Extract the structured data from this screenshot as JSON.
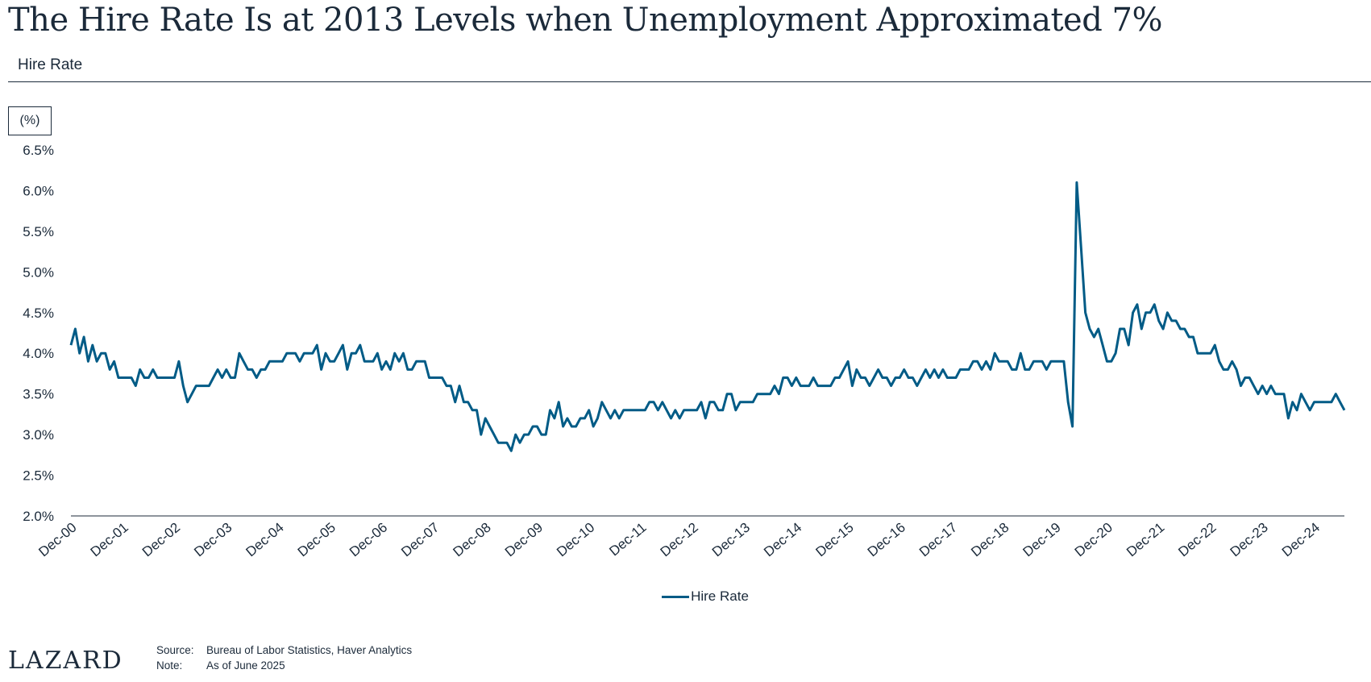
{
  "header": {
    "title": "The Hire Rate Is at 2013 Levels when Unemployment Approximated 7%",
    "subtitle": "Hire Rate"
  },
  "chart_data": {
    "type": "line",
    "unit_label": "(%)",
    "y_ticks": [
      "2.0%",
      "2.5%",
      "3.0%",
      "3.5%",
      "4.0%",
      "4.5%",
      "5.0%",
      "5.5%",
      "6.0%",
      "6.5%"
    ],
    "ylim": [
      2.0,
      6.5
    ],
    "x_ticks": [
      "Dec-00",
      "Dec-01",
      "Dec-02",
      "Dec-03",
      "Dec-04",
      "Dec-05",
      "Dec-06",
      "Dec-07",
      "Dec-08",
      "Dec-09",
      "Dec-10",
      "Dec-11",
      "Dec-12",
      "Dec-13",
      "Dec-14",
      "Dec-15",
      "Dec-16",
      "Dec-17",
      "Dec-18",
      "Dec-19",
      "Dec-20",
      "Dec-21",
      "Dec-22",
      "Dec-23",
      "Dec-24"
    ],
    "x_range": [
      "Dec-00",
      "Jun-25"
    ],
    "legend_position": "bottom-center",
    "grid": false,
    "series": [
      {
        "name": "Hire Rate",
        "color": "#005b86",
        "start": "Dec-00",
        "frequency": "monthly",
        "values": [
          4.1,
          4.3,
          4.0,
          4.2,
          3.9,
          4.1,
          3.9,
          4.0,
          4.0,
          3.8,
          3.9,
          3.7,
          3.7,
          3.7,
          3.7,
          3.6,
          3.8,
          3.7,
          3.7,
          3.8,
          3.7,
          3.7,
          3.7,
          3.7,
          3.7,
          3.9,
          3.6,
          3.4,
          3.5,
          3.6,
          3.6,
          3.6,
          3.6,
          3.7,
          3.8,
          3.7,
          3.8,
          3.7,
          3.7,
          4.0,
          3.9,
          3.8,
          3.8,
          3.7,
          3.8,
          3.8,
          3.9,
          3.9,
          3.9,
          3.9,
          4.0,
          4.0,
          4.0,
          3.9,
          4.0,
          4.0,
          4.0,
          4.1,
          3.8,
          4.0,
          3.9,
          3.9,
          4.0,
          4.1,
          3.8,
          4.0,
          4.0,
          4.1,
          3.9,
          3.9,
          3.9,
          4.0,
          3.8,
          3.9,
          3.8,
          4.0,
          3.9,
          4.0,
          3.8,
          3.8,
          3.9,
          3.9,
          3.9,
          3.7,
          3.7,
          3.7,
          3.7,
          3.6,
          3.6,
          3.4,
          3.6,
          3.4,
          3.4,
          3.3,
          3.3,
          3.0,
          3.2,
          3.1,
          3.0,
          2.9,
          2.9,
          2.9,
          2.8,
          3.0,
          2.9,
          3.0,
          3.0,
          3.1,
          3.1,
          3.0,
          3.0,
          3.3,
          3.2,
          3.4,
          3.1,
          3.2,
          3.1,
          3.1,
          3.2,
          3.2,
          3.3,
          3.1,
          3.2,
          3.4,
          3.3,
          3.2,
          3.3,
          3.2,
          3.3,
          3.3,
          3.3,
          3.3,
          3.3,
          3.3,
          3.4,
          3.4,
          3.3,
          3.4,
          3.3,
          3.2,
          3.3,
          3.2,
          3.3,
          3.3,
          3.3,
          3.3,
          3.4,
          3.2,
          3.4,
          3.4,
          3.3,
          3.3,
          3.5,
          3.5,
          3.3,
          3.4,
          3.4,
          3.4,
          3.4,
          3.5,
          3.5,
          3.5,
          3.5,
          3.6,
          3.5,
          3.7,
          3.7,
          3.6,
          3.7,
          3.6,
          3.6,
          3.6,
          3.7,
          3.6,
          3.6,
          3.6,
          3.6,
          3.7,
          3.7,
          3.8,
          3.9,
          3.6,
          3.8,
          3.7,
          3.7,
          3.6,
          3.7,
          3.8,
          3.7,
          3.7,
          3.6,
          3.7,
          3.7,
          3.8,
          3.7,
          3.7,
          3.6,
          3.7,
          3.8,
          3.7,
          3.8,
          3.7,
          3.8,
          3.7,
          3.7,
          3.7,
          3.8,
          3.8,
          3.8,
          3.9,
          3.9,
          3.8,
          3.9,
          3.8,
          4.0,
          3.9,
          3.9,
          3.9,
          3.8,
          3.8,
          4.0,
          3.8,
          3.8,
          3.9,
          3.9,
          3.9,
          3.8,
          3.9,
          3.9,
          3.9,
          3.9,
          3.4,
          3.1,
          6.1,
          5.3,
          4.5,
          4.3,
          4.2,
          4.3,
          4.1,
          3.9,
          3.9,
          4.0,
          4.3,
          4.3,
          4.1,
          4.5,
          4.6,
          4.3,
          4.5,
          4.5,
          4.6,
          4.4,
          4.3,
          4.5,
          4.4,
          4.4,
          4.3,
          4.3,
          4.2,
          4.2,
          4.0,
          4.0,
          4.0,
          4.0,
          4.1,
          3.9,
          3.8,
          3.8,
          3.9,
          3.8,
          3.6,
          3.7,
          3.7,
          3.6,
          3.5,
          3.6,
          3.5,
          3.6,
          3.5,
          3.5,
          3.5,
          3.2,
          3.4,
          3.3,
          3.5,
          3.4,
          3.3,
          3.4,
          3.4,
          3.4,
          3.4,
          3.4,
          3.5,
          3.4,
          3.3
        ]
      }
    ]
  },
  "legend": {
    "label": "Hire Rate"
  },
  "footer": {
    "logo": "LAZARD",
    "source_label": "Source:",
    "source_text": "Bureau of Labor Statistics, Haver Analytics",
    "note_label": "Note:",
    "note_text": "As of June 2025"
  }
}
